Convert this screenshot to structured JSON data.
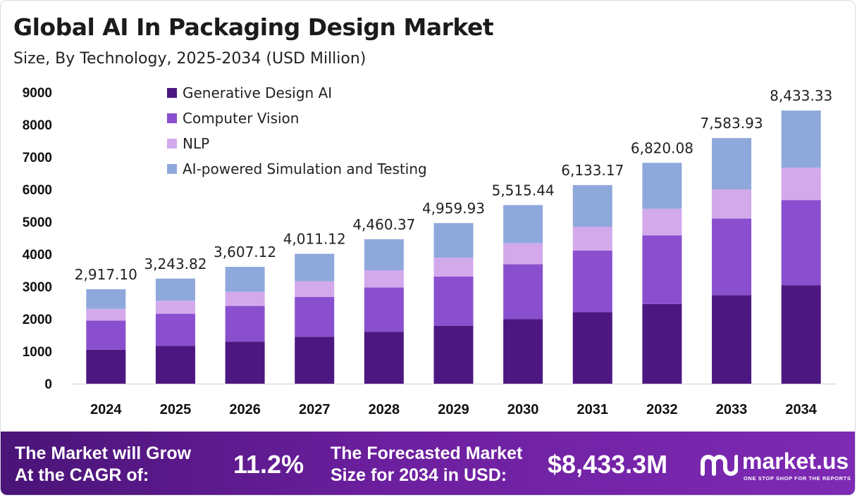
{
  "header": {
    "title": "Global AI In Packaging Design Market",
    "subtitle": "Size, By Technology, 2025-2034 (USD Million)"
  },
  "colors": {
    "generative": "#4d1782",
    "vision": "#8a4fce",
    "nlp": "#d3a9ec",
    "simulation": "#8fa8dc",
    "footer": "#5e1a8e"
  },
  "chart_data": {
    "type": "bar",
    "stacked": true,
    "categories": [
      "2024",
      "2025",
      "2026",
      "2027",
      "2028",
      "2029",
      "2030",
      "2031",
      "2032",
      "2033",
      "2034"
    ],
    "series": [
      {
        "name": "Generative Design AI",
        "values": [
          1050,
          1170,
          1300,
          1450,
          1600,
          1790,
          1990,
          2210,
          2460,
          2730,
          3040
        ]
      },
      {
        "name": "Computer Vision",
        "values": [
          900,
          990,
          1100,
          1230,
          1370,
          1520,
          1700,
          1900,
          2120,
          2370,
          2630
        ]
      },
      {
        "name": "NLP",
        "values": [
          360,
          400,
          440,
          480,
          530,
          580,
          650,
          730,
          820,
          900,
          1000
        ]
      },
      {
        "name": "AI-powered Simulation and Testing",
        "values": [
          607.1,
          683.82,
          767.12,
          851.12,
          960.37,
          1069.93,
          1175.44,
          1293.17,
          1420.08,
          1583.93,
          1763.33
        ]
      }
    ],
    "totals": [
      "2,917.10",
      "3,243.82",
      "3,607.12",
      "4,011.12",
      "4,460.37",
      "4,959.93",
      "5,515.44",
      "6,133.17",
      "6,820.08",
      "7,583.93",
      "8,433.33"
    ],
    "yticks": [
      0,
      1000,
      2000,
      3000,
      4000,
      5000,
      6000,
      7000,
      8000,
      9000
    ],
    "ylim": [
      0,
      9000
    ],
    "legend_position": "top-left",
    "grid": false
  },
  "footer": {
    "cagr_label_line1": "The Market will Grow",
    "cagr_label_line2": "At the CAGR of:",
    "cagr_value": "11.2%",
    "forecast_label_line1": "The Forecasted Market",
    "forecast_label_line2": "Size for 2034 in USD:",
    "forecast_value": "$8,433.3M",
    "logo_text": "market.us",
    "logo_tagline": "ONE STOP SHOP FOR THE REPORTS"
  }
}
